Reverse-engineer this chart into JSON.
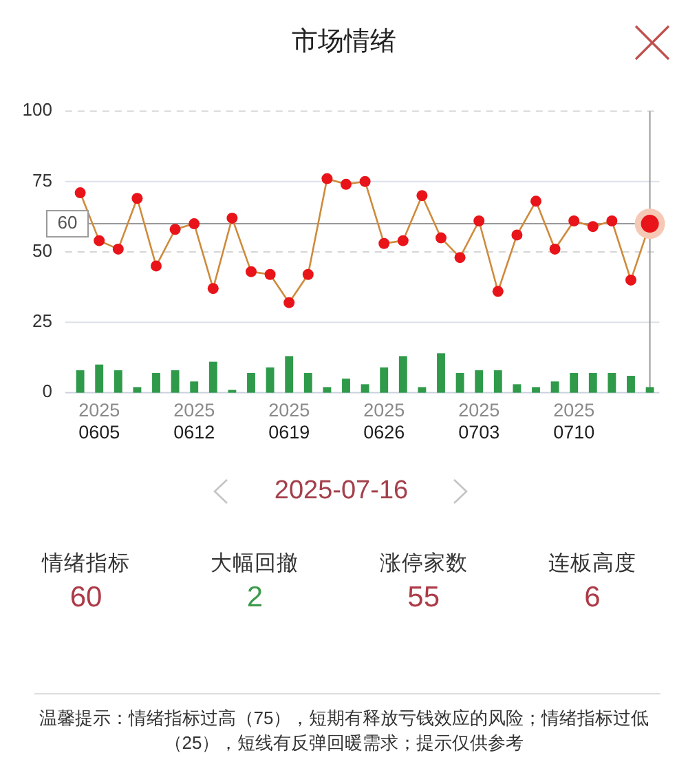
{
  "chart_data": [
    {
      "type": "line",
      "title": "市场情绪",
      "categories": [
        null,
        "2025\n0605",
        null,
        null,
        null,
        null,
        "2025\n0612",
        null,
        null,
        null,
        null,
        "2025\n0619",
        null,
        null,
        null,
        null,
        "2025\n0626",
        null,
        null,
        null,
        null,
        "2025\n0703",
        null,
        null,
        null,
        null,
        "2025\n0710",
        null,
        null,
        null,
        null
      ],
      "series": [
        {
          "type": "bar",
          "color": "#2f9a4a",
          "values": [
            8,
            10,
            8,
            2,
            7,
            8,
            4,
            11,
            1,
            7,
            9,
            13,
            7,
            2,
            5,
            3,
            9,
            13,
            2,
            14,
            7,
            8,
            8,
            3,
            2,
            4,
            7,
            7,
            7,
            6,
            2
          ]
        },
        {
          "type": "line",
          "color": "#cf8a3c",
          "colors": [
            "#e8141a",
            "#e8141a",
            "#e8141a",
            "#e8141a",
            "#e8141a",
            "#e8141a",
            "#e8141a",
            "#e8141a",
            "#e8141a",
            "#e8141a",
            "#e8141a",
            "#e8141a",
            "#e8141a",
            "#e8141a",
            "#e8141a",
            "#e8141a",
            "#e8141a",
            "#e8141a",
            "#e8141a",
            "#e8141a",
            "#e8141a",
            "#e8141a",
            "#e8141a",
            "#e8141a",
            "#e8141a",
            "#e8141a",
            "#e8141a",
            "#e8141a",
            "#e8141a",
            "#e8141a",
            "#e8141a"
          ],
          "values": [
            71,
            54,
            51,
            69,
            45,
            58,
            60,
            37,
            62,
            43,
            42,
            32,
            42,
            76,
            74,
            75,
            53,
            54,
            70,
            55,
            48,
            61,
            36,
            56,
            68,
            51,
            61,
            59,
            61,
            40,
            60
          ]
        }
      ],
      "ylim": [
        0,
        100
      ],
      "yticks": [
        0,
        25,
        50,
        75,
        100
      ],
      "grid": "y",
      "marker": "circle",
      "ref_lines": [
        {
          "axis": "y",
          "value": 100,
          "color": "#d6d6d6",
          "line_style": "dashed"
        },
        {
          "axis": "y",
          "value": 50,
          "color": "#d6d6d6",
          "line_style": "dashed"
        },
        {
          "axis": "y",
          "value": 60,
          "label": "60",
          "color": "#999999"
        }
      ]
    },
    {
      "type": "other",
      "title": "2025-07-16",
      "categories": [
        "情绪指标",
        "大幅回撤",
        "涨停家数",
        "连板高度"
      ],
      "values": [
        60,
        2,
        55,
        6
      ],
      "colors": [
        "#ad3a47",
        "#3d9a4c",
        "#ad3a47",
        "#ad3a47"
      ],
      "data_labels": true,
      "annotations": [
        "温馨提示：情绪指标过高（75），短期有释放亏钱效应的风险；情绪指标过低（25），短线有反弹回暖需求；提示仅供参考"
      ]
    }
  ]
}
